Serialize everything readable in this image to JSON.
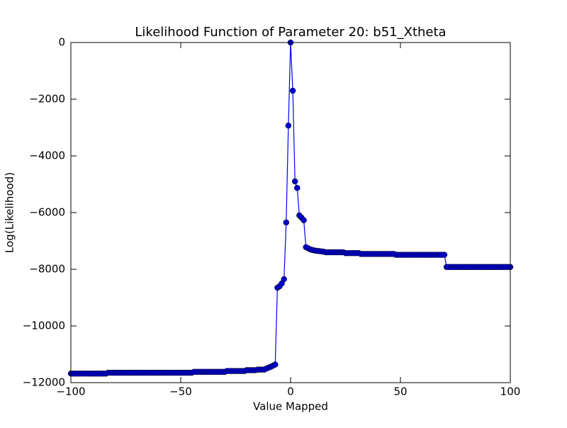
{
  "chart_data": {
    "type": "line",
    "title": "Likelihood Function of Parameter 20: b51_Xtheta",
    "x_label": "Value Mapped",
    "y_label": "Log(Likelihood)",
    "x": [
      -100,
      -99,
      -98,
      -97,
      -96,
      -95,
      -94,
      -93,
      -92,
      -91,
      -90,
      -89,
      -88,
      -87,
      -86,
      -85,
      -84,
      -83,
      -82,
      -81,
      -80,
      -79,
      -78,
      -77,
      -76,
      -75,
      -74,
      -73,
      -72,
      -71,
      -70,
      -69,
      -68,
      -67,
      -66,
      -65,
      -64,
      -63,
      -62,
      -61,
      -60,
      -59,
      -58,
      -57,
      -56,
      -55,
      -54,
      -53,
      -52,
      -51,
      -50,
      -49,
      -48,
      -47,
      -46,
      -45,
      -44,
      -43,
      -42,
      -41,
      -40,
      -39,
      -38,
      -37,
      -36,
      -35,
      -34,
      -33,
      -32,
      -31,
      -30,
      -29,
      -28,
      -27,
      -26,
      -25,
      -24,
      -23,
      -22,
      -21,
      -20,
      -19,
      -18,
      -17,
      -16,
      -15,
      -14,
      -13,
      -12,
      -11,
      -10,
      -9,
      -8,
      -7,
      -6,
      -5,
      -4,
      -3,
      -2,
      -1,
      0,
      1,
      2,
      3,
      4,
      5,
      6,
      7,
      8,
      9,
      10,
      11,
      12,
      13,
      14,
      15,
      16,
      17,
      18,
      19,
      20,
      21,
      22,
      23,
      24,
      25,
      26,
      27,
      28,
      29,
      30,
      31,
      32,
      33,
      34,
      35,
      36,
      37,
      38,
      39,
      40,
      41,
      42,
      43,
      44,
      45,
      46,
      47,
      48,
      49,
      50,
      51,
      52,
      53,
      54,
      55,
      56,
      57,
      58,
      59,
      60,
      61,
      62,
      63,
      64,
      65,
      66,
      67,
      68,
      69,
      70,
      71,
      72,
      73,
      74,
      75,
      76,
      77,
      78,
      79,
      80,
      81,
      82,
      83,
      84,
      85,
      86,
      87,
      88,
      89,
      90,
      91,
      92,
      93,
      94,
      95,
      96,
      97,
      98,
      99,
      100
    ],
    "series": [
      {
        "name": "b51_Xtheta",
        "color": "#0000ff",
        "marker_color": "#0000cc",
        "values": [
          -11680,
          -11680,
          -11680,
          -11680,
          -11680,
          -11680,
          -11680,
          -11680,
          -11680,
          -11680,
          -11680,
          -11680,
          -11680,
          -11680,
          -11680,
          -11680,
          -11680,
          -11650,
          -11650,
          -11650,
          -11650,
          -11650,
          -11650,
          -11650,
          -11650,
          -11650,
          -11650,
          -11650,
          -11650,
          -11650,
          -11650,
          -11650,
          -11650,
          -11650,
          -11650,
          -11650,
          -11650,
          -11650,
          -11650,
          -11650,
          -11650,
          -11650,
          -11650,
          -11650,
          -11650,
          -11650,
          -11650,
          -11650,
          -11650,
          -11650,
          -11650,
          -11650,
          -11650,
          -11650,
          -11650,
          -11650,
          -11620,
          -11620,
          -11620,
          -11620,
          -11620,
          -11620,
          -11620,
          -11620,
          -11620,
          -11620,
          -11620,
          -11620,
          -11620,
          -11620,
          -11620,
          -11590,
          -11590,
          -11590,
          -11590,
          -11590,
          -11590,
          -11590,
          -11590,
          -11590,
          -11560,
          -11560,
          -11560,
          -11560,
          -11560,
          -11540,
          -11540,
          -11540,
          -11540,
          -11500,
          -11470,
          -11440,
          -11400,
          -11360,
          -8650,
          -8600,
          -8500,
          -8350,
          -6350,
          -2930,
          0,
          -1700,
          -4900,
          -5130,
          -6100,
          -6180,
          -6270,
          -7220,
          -7260,
          -7300,
          -7320,
          -7340,
          -7350,
          -7360,
          -7370,
          -7380,
          -7400,
          -7400,
          -7400,
          -7400,
          -7400,
          -7400,
          -7400,
          -7400,
          -7400,
          -7430,
          -7430,
          -7430,
          -7430,
          -7430,
          -7430,
          -7430,
          -7460,
          -7460,
          -7460,
          -7460,
          -7460,
          -7460,
          -7460,
          -7460,
          -7460,
          -7460,
          -7460,
          -7460,
          -7460,
          -7460,
          -7460,
          -7460,
          -7490,
          -7490,
          -7490,
          -7490,
          -7490,
          -7490,
          -7490,
          -7490,
          -7490,
          -7490,
          -7490,
          -7490,
          -7490,
          -7490,
          -7490,
          -7490,
          -7490,
          -7490,
          -7490,
          -7490,
          -7490,
          -7490,
          -7490,
          -7920,
          -7920,
          -7920,
          -7920,
          -7920,
          -7920,
          -7920,
          -7920,
          -7920,
          -7920,
          -7920,
          -7920,
          -7920,
          -7920,
          -7920,
          -7920,
          -7920,
          -7920,
          -7920,
          -7920,
          -7920,
          -7920,
          -7920,
          -7920,
          -7920,
          -7920,
          -7920,
          -7920,
          -7920,
          -7920
        ]
      }
    ],
    "xlim": [
      -100,
      100
    ],
    "xticks": [
      {
        "value": -100,
        "label": "−100"
      },
      {
        "value": -50,
        "label": "−50"
      },
      0,
      50,
      100
    ],
    "ylim": [
      -12000,
      0
    ],
    "yticks": [
      {
        "value": -12000,
        "label": "−12000"
      },
      {
        "value": -10000,
        "label": "−10000"
      },
      {
        "value": -8000,
        "label": "−8000"
      },
      {
        "value": -6000,
        "label": "−6000"
      },
      {
        "value": -4000,
        "label": "−4000"
      },
      {
        "value": -2000,
        "label": "−2000"
      },
      0
    ],
    "grid": false
  }
}
